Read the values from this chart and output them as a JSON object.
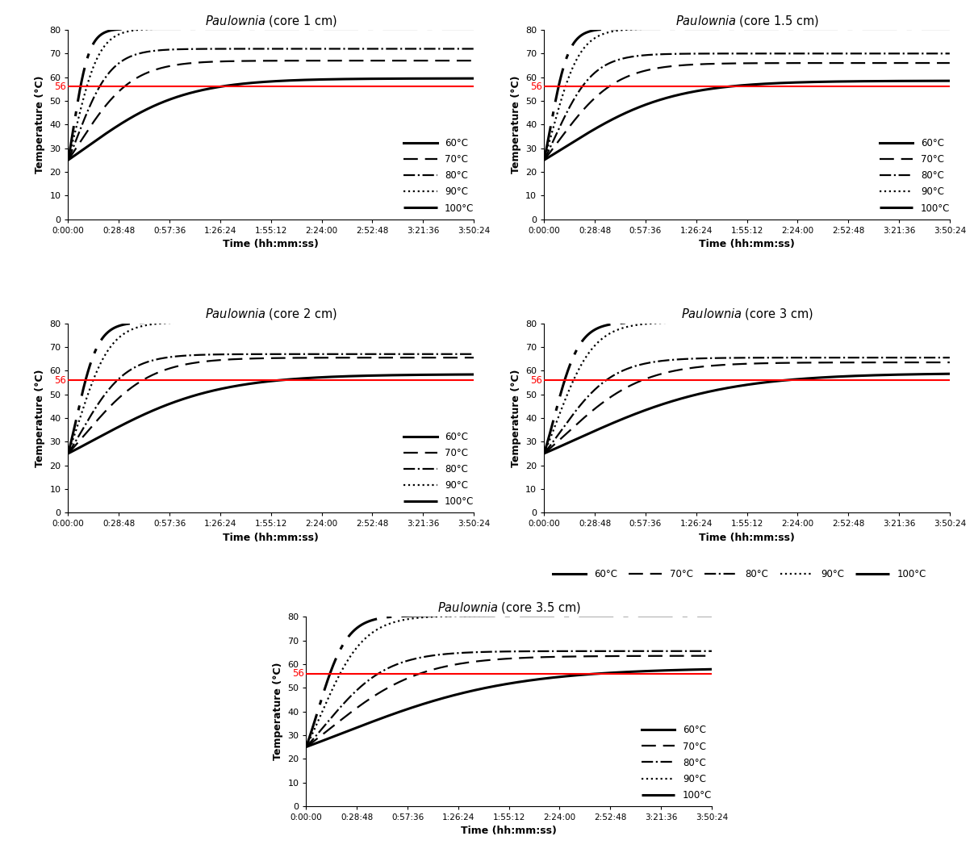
{
  "titles": [
    "Paulownia (core 1 cm)",
    "Paulownia (core 1.5 cm)",
    "Paulownia (core 2 cm)",
    "Paulownia (core 3 cm)",
    "Paulownia (core 3.5 cm)"
  ],
  "xlabel": "Time (hh:mm:ss)",
  "ylabel": "Temperature (°C)",
  "ylim": [
    0,
    80
  ],
  "yticks": [
    0,
    10,
    20,
    30,
    40,
    50,
    60,
    70,
    80
  ],
  "xticks_seconds": [
    0,
    1728,
    3456,
    5184,
    6912,
    8640,
    10368,
    12096,
    13824
  ],
  "xtick_labels": [
    "0:00:00",
    "0:28:48",
    "0:57:36",
    "1:26:24",
    "1:55:12",
    "2:24:00",
    "2:52:48",
    "3:21:36",
    "3:50:24"
  ],
  "hline_y": 56,
  "hline_color": "#FF0000",
  "t_max_seconds": 13824,
  "legend_labels": [
    "60°C",
    "70°C",
    "80°C",
    "90°C",
    "100°C"
  ],
  "panels": [
    {
      "name": "core_1cm",
      "curves": [
        {
          "T0": 25,
          "T_inf": 59.5,
          "k": 0.0006,
          "t_infl": 600
        },
        {
          "T0": 25,
          "T_inf": 67.0,
          "k": 0.0011,
          "t_infl": 400
        },
        {
          "T0": 25,
          "T_inf": 72.0,
          "k": 0.0017,
          "t_infl": 300
        },
        {
          "T0": 25,
          "T_inf": 80.5,
          "k": 0.0024,
          "t_infl": 250
        },
        {
          "T0": 25,
          "T_inf": 80.5,
          "k": 0.0037,
          "t_infl": 180
        }
      ]
    },
    {
      "name": "core_1_5cm",
      "curves": [
        {
          "T0": 25,
          "T_inf": 58.5,
          "k": 0.00055,
          "t_infl": 700
        },
        {
          "T0": 25,
          "T_inf": 66.0,
          "k": 0.001,
          "t_infl": 480
        },
        {
          "T0": 25,
          "T_inf": 70.0,
          "k": 0.0015,
          "t_infl": 360
        },
        {
          "T0": 25,
          "T_inf": 80.5,
          "k": 0.0021,
          "t_infl": 290
        },
        {
          "T0": 25,
          "T_inf": 80.5,
          "k": 0.0032,
          "t_infl": 220
        }
      ]
    },
    {
      "name": "core_2cm",
      "curves": [
        {
          "T0": 25,
          "T_inf": 58.5,
          "k": 0.00048,
          "t_infl": 900
        },
        {
          "T0": 25,
          "T_inf": 65.5,
          "k": 0.0009,
          "t_infl": 600
        },
        {
          "T0": 25,
          "T_inf": 67.0,
          "k": 0.0013,
          "t_infl": 450
        },
        {
          "T0": 25,
          "T_inf": 80.5,
          "k": 0.0018,
          "t_infl": 350
        },
        {
          "T0": 25,
          "T_inf": 80.5,
          "k": 0.0027,
          "t_infl": 280
        }
      ]
    },
    {
      "name": "core_3cm",
      "curves": [
        {
          "T0": 25,
          "T_inf": 59.0,
          "k": 0.0004,
          "t_infl": 1100
        },
        {
          "T0": 25,
          "T_inf": 63.5,
          "k": 0.00075,
          "t_infl": 750
        },
        {
          "T0": 25,
          "T_inf": 65.5,
          "k": 0.0011,
          "t_infl": 560
        },
        {
          "T0": 25,
          "T_inf": 80.5,
          "k": 0.00155,
          "t_infl": 430
        },
        {
          "T0": 25,
          "T_inf": 80.5,
          "k": 0.0023,
          "t_infl": 340
        }
      ]
    },
    {
      "name": "core_3_5cm",
      "curves": [
        {
          "T0": 25,
          "T_inf": 58.5,
          "k": 0.00035,
          "t_infl": 1300
        },
        {
          "T0": 25,
          "T_inf": 63.5,
          "k": 0.00065,
          "t_infl": 880
        },
        {
          "T0": 25,
          "T_inf": 65.5,
          "k": 0.00095,
          "t_infl": 660
        },
        {
          "T0": 25,
          "T_inf": 80.5,
          "k": 0.00135,
          "t_infl": 510
        },
        {
          "T0": 25,
          "T_inf": 80.5,
          "k": 0.002,
          "t_infl": 400
        }
      ]
    }
  ],
  "line_styles": [
    {
      "ls": "-",
      "lw": 2.2,
      "dashes": null
    },
    {
      "ls": "--",
      "lw": 1.6,
      "dashes": [
        8,
        4
      ]
    },
    {
      "ls": "-.",
      "lw": 1.6,
      "dashes": null
    },
    {
      "ls": ":",
      "lw": 1.6,
      "dashes": null
    },
    {
      "ls": "--",
      "lw": 2.2,
      "dashes": [
        14,
        4,
        2,
        4
      ]
    }
  ]
}
